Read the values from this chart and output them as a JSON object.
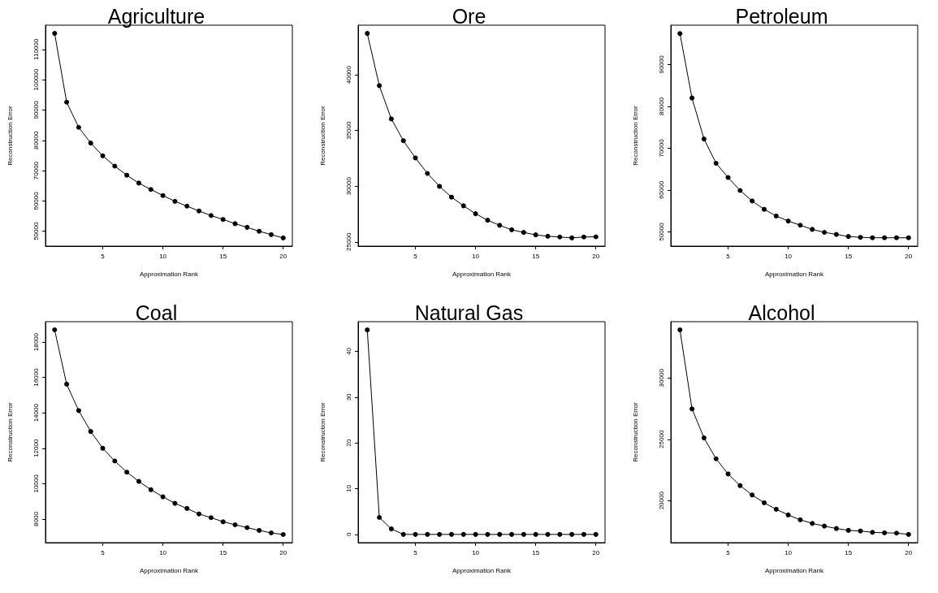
{
  "chart_data": [
    {
      "type": "line",
      "title": "Agriculture",
      "xlabel": "Approximation Rank",
      "ylabel": "Reconstruction Error",
      "marker": "circle",
      "line_style": "solid",
      "grid": false,
      "x": [
        1,
        2,
        3,
        4,
        5,
        6,
        7,
        8,
        9,
        10,
        11,
        12,
        13,
        14,
        15,
        16,
        17,
        18,
        19,
        20
      ],
      "xlim": [
        0.24,
        20.76
      ],
      "xticks": [
        5,
        10,
        15,
        20
      ],
      "ylim": [
        45100,
        118000
      ],
      "yticks": [
        50000,
        60000,
        70000,
        80000,
        90000,
        100000,
        110000
      ],
      "series": [
        {
          "color": "#000000",
          "values": [
            115300,
            92600,
            84300,
            79100,
            74900,
            71500,
            68500,
            65900,
            63800,
            61800,
            59900,
            58300,
            56700,
            55200,
            53900,
            52500,
            51300,
            50000,
            48900,
            47800
          ]
        }
      ]
    },
    {
      "type": "line",
      "title": "Ore",
      "xlabel": "Approximation Rank",
      "ylabel": "Reconstruction Error",
      "marker": "circle",
      "line_style": "solid",
      "grid": false,
      "x": [
        1,
        2,
        3,
        4,
        5,
        6,
        7,
        8,
        9,
        10,
        11,
        12,
        13,
        14,
        15,
        16,
        17,
        18,
        19,
        20
      ],
      "xlim": [
        0.24,
        20.76
      ],
      "xticks": [
        5,
        10,
        15,
        20
      ],
      "ylim": [
        24620,
        44460
      ],
      "yticks": [
        25000,
        30000,
        35000,
        40000
      ],
      "series": [
        {
          "color": "#000000",
          "values": [
            43720,
            39030,
            36040,
            34090,
            32540,
            31150,
            29990,
            29020,
            28240,
            27530,
            26950,
            26490,
            26090,
            25850,
            25630,
            25510,
            25440,
            25360,
            25440,
            25460
          ]
        }
      ]
    },
    {
      "type": "line",
      "title": "Petroleum",
      "xlabel": "Approximation Rank",
      "ylabel": "Reconstruction Error",
      "marker": "circle",
      "line_style": "solid",
      "grid": false,
      "x": [
        1,
        2,
        3,
        4,
        5,
        6,
        7,
        8,
        9,
        10,
        11,
        12,
        13,
        14,
        15,
        16,
        17,
        18,
        19,
        20
      ],
      "xlim": [
        0.24,
        20.76
      ],
      "xticks": [
        5,
        10,
        15,
        20
      ],
      "ylim": [
        46600,
        99400
      ],
      "yticks": [
        50000,
        60000,
        70000,
        80000,
        90000
      ],
      "series": [
        {
          "color": "#000000",
          "values": [
            97400,
            82000,
            72200,
            66400,
            63000,
            59900,
            57400,
            55400,
            53800,
            52600,
            51600,
            50600,
            49900,
            49400,
            48900,
            48700,
            48600,
            48600,
            48600,
            48600
          ]
        }
      ]
    },
    {
      "type": "line",
      "title": "Coal",
      "xlabel": "Approximation Rank",
      "ylabel": "Reconstruction Error",
      "marker": "circle",
      "line_style": "solid",
      "grid": false,
      "x": [
        1,
        2,
        3,
        4,
        5,
        6,
        7,
        8,
        9,
        10,
        11,
        12,
        13,
        14,
        15,
        16,
        17,
        18,
        19,
        20
      ],
      "xlim": [
        0.24,
        20.76
      ],
      "xticks": [
        5,
        10,
        15,
        20
      ],
      "ylim": [
        6670,
        19150
      ],
      "yticks": [
        8000,
        10000,
        12000,
        14000,
        16000,
        18000
      ],
      "series": [
        {
          "color": "#000000",
          "values": [
            18690,
            15620,
            14130,
            12950,
            12000,
            11280,
            10650,
            10130,
            9660,
            9260,
            8890,
            8600,
            8290,
            8080,
            7850,
            7680,
            7520,
            7360,
            7220,
            7130
          ]
        }
      ]
    },
    {
      "type": "line",
      "title": "Natural Gas",
      "xlabel": "Approximation Rank",
      "ylabel": "Reconstruction Error",
      "marker": "circle",
      "line_style": "solid",
      "grid": false,
      "x": [
        1,
        2,
        3,
        4,
        5,
        6,
        7,
        8,
        9,
        10,
        11,
        12,
        13,
        14,
        15,
        16,
        17,
        18,
        19,
        20
      ],
      "xlim": [
        0.24,
        20.76
      ],
      "xticks": [
        5,
        10,
        15,
        20
      ],
      "ylim": [
        -1.8,
        46.5
      ],
      "yticks": [
        0,
        10,
        20,
        30,
        40
      ],
      "series": [
        {
          "color": "#000000",
          "values": [
            44.7,
            3.7,
            1.2,
            0,
            0,
            0,
            0,
            0,
            0,
            0,
            0,
            0,
            0,
            0,
            0,
            0,
            0,
            0,
            0,
            0
          ]
        }
      ]
    },
    {
      "type": "line",
      "title": "Alcohol",
      "xlabel": "Approximation Rank",
      "ylabel": "Reconstruction Error",
      "marker": "circle",
      "line_style": "solid",
      "grid": false,
      "x": [
        1,
        2,
        3,
        4,
        5,
        6,
        7,
        8,
        9,
        10,
        11,
        12,
        13,
        14,
        15,
        16,
        17,
        18,
        19,
        20
      ],
      "xlim": [
        0.24,
        20.76
      ],
      "xticks": [
        5,
        10,
        15,
        20
      ],
      "ylim": [
        16570,
        34590
      ],
      "yticks": [
        20000,
        25000,
        30000
      ],
      "series": [
        {
          "color": "#000000",
          "values": [
            33920,
            27480,
            25110,
            23410,
            22170,
            21220,
            20460,
            19820,
            19290,
            18830,
            18430,
            18140,
            17920,
            17720,
            17570,
            17520,
            17410,
            17370,
            17350,
            17240
          ]
        }
      ]
    }
  ]
}
